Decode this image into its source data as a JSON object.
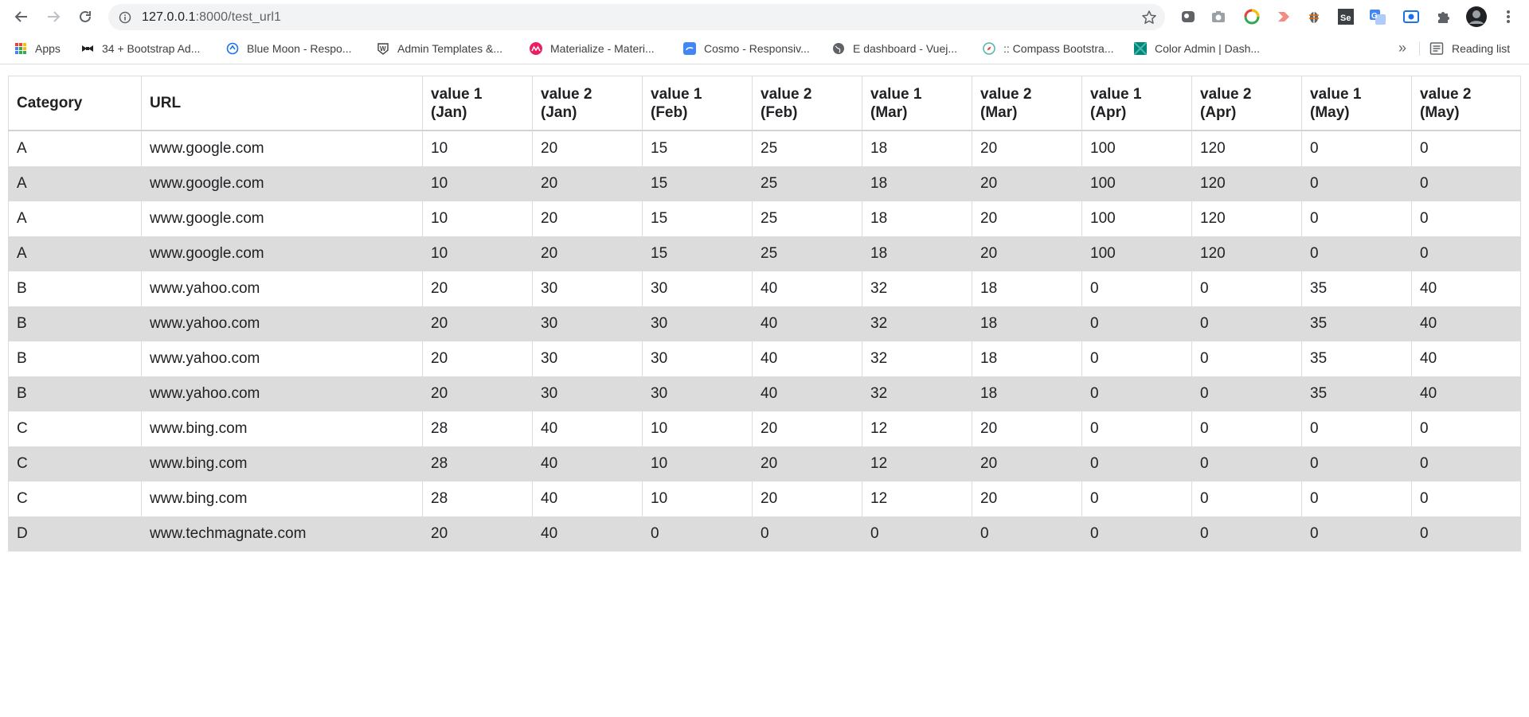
{
  "browser": {
    "url_host": "127.0.0.1",
    "url_rest": ":8000/test_url1",
    "bookmarks": [
      {
        "label": "Apps",
        "icon": "apps-grid-icon"
      },
      {
        "label": "34 + Bootstrap Ad...",
        "icon": "bowtie-icon"
      },
      {
        "label": "Blue Moon - Respo...",
        "icon": "blue-moon-icon"
      },
      {
        "label": "Admin Templates &...",
        "icon": "w-shield-icon"
      },
      {
        "label": "Materialize - Materi...",
        "icon": "materialize-icon"
      },
      {
        "label": "Cosmo - Responsiv...",
        "icon": "cosmo-icon"
      },
      {
        "label": "E dashboard - Vuej...",
        "icon": "globe-icon"
      },
      {
        "label": ":: Compass Bootstra...",
        "icon": "compass-icon"
      },
      {
        "label": "Color Admin | Dash...",
        "icon": "color-admin-icon"
      }
    ],
    "more_label": "»",
    "reading_list_label": "Reading list"
  },
  "table": {
    "headers": [
      {
        "line1": "Category",
        "line2": ""
      },
      {
        "line1": "URL",
        "line2": ""
      },
      {
        "line1": "value 1",
        "line2": "(Jan)"
      },
      {
        "line1": "value 2",
        "line2": "(Jan)"
      },
      {
        "line1": "value 1",
        "line2": "(Feb)"
      },
      {
        "line1": "value 2",
        "line2": "(Feb)"
      },
      {
        "line1": "value 1",
        "line2": "(Mar)"
      },
      {
        "line1": "value 2",
        "line2": "(Mar)"
      },
      {
        "line1": "value 1",
        "line2": "(Apr)"
      },
      {
        "line1": "value 2",
        "line2": "(Apr)"
      },
      {
        "line1": "value 1",
        "line2": "(May)"
      },
      {
        "line1": "value 2",
        "line2": "(May)"
      }
    ],
    "rows": [
      [
        "A",
        "www.google.com",
        "10",
        "20",
        "15",
        "25",
        "18",
        "20",
        "100",
        "120",
        "0",
        "0"
      ],
      [
        "A",
        "www.google.com",
        "10",
        "20",
        "15",
        "25",
        "18",
        "20",
        "100",
        "120",
        "0",
        "0"
      ],
      [
        "A",
        "www.google.com",
        "10",
        "20",
        "15",
        "25",
        "18",
        "20",
        "100",
        "120",
        "0",
        "0"
      ],
      [
        "A",
        "www.google.com",
        "10",
        "20",
        "15",
        "25",
        "18",
        "20",
        "100",
        "120",
        "0",
        "0"
      ],
      [
        "B",
        "www.yahoo.com",
        "20",
        "30",
        "30",
        "40",
        "32",
        "18",
        "0",
        "0",
        "35",
        "40"
      ],
      [
        "B",
        "www.yahoo.com",
        "20",
        "30",
        "30",
        "40",
        "32",
        "18",
        "0",
        "0",
        "35",
        "40"
      ],
      [
        "B",
        "www.yahoo.com",
        "20",
        "30",
        "30",
        "40",
        "32",
        "18",
        "0",
        "0",
        "35",
        "40"
      ],
      [
        "B",
        "www.yahoo.com",
        "20",
        "30",
        "30",
        "40",
        "32",
        "18",
        "0",
        "0",
        "35",
        "40"
      ],
      [
        "C",
        "www.bing.com",
        "28",
        "40",
        "10",
        "20",
        "12",
        "20",
        "0",
        "0",
        "0",
        "0"
      ],
      [
        "C",
        "www.bing.com",
        "28",
        "40",
        "10",
        "20",
        "12",
        "20",
        "0",
        "0",
        "0",
        "0"
      ],
      [
        "C",
        "www.bing.com",
        "28",
        "40",
        "10",
        "20",
        "12",
        "20",
        "0",
        "0",
        "0",
        "0"
      ],
      [
        "D",
        "www.techmagnate.com",
        "20",
        "40",
        "0",
        "0",
        "0",
        "0",
        "0",
        "0",
        "0",
        "0"
      ]
    ]
  }
}
